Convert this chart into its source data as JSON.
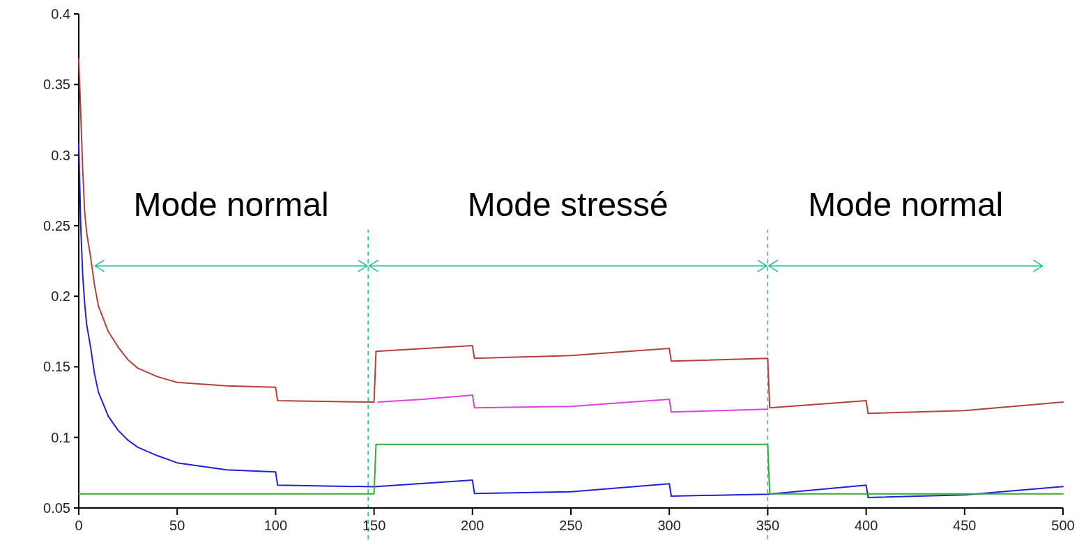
{
  "chart_data": {
    "type": "line",
    "xlim": [
      0,
      500
    ],
    "xticks": [
      0,
      50,
      100,
      150,
      200,
      250,
      300,
      350,
      400,
      450,
      500
    ],
    "ylim": [
      0.05,
      0.4
    ],
    "yticks": [
      0.05,
      0.1,
      0.15,
      0.2,
      0.25,
      0.3,
      0.35,
      0.4
    ],
    "grid": false,
    "marker": "none",
    "line_style": "solid",
    "series": [
      {
        "color": "#e040e0",
        "x": [
          152,
          175,
          200,
          201,
          250,
          300,
          301,
          350
        ],
        "values": [
          0.125,
          0.127,
          0.13,
          0.121,
          0.122,
          0.127,
          0.118,
          0.12
        ]
      },
      {
        "color": "#2020e0",
        "x": [
          0,
          1,
          2,
          3,
          4,
          6,
          8,
          10,
          15,
          20,
          25,
          30,
          40,
          50,
          75,
          100,
          101,
          150,
          200,
          201,
          250,
          300,
          301,
          350,
          400,
          401,
          450,
          500
        ],
        "values": [
          0.308,
          0.25,
          0.215,
          0.195,
          0.18,
          0.164,
          0.145,
          0.132,
          0.115,
          0.105,
          0.098,
          0.093,
          0.087,
          0.082,
          0.077,
          0.0756,
          0.0662,
          0.065,
          0.0697,
          0.0603,
          0.0615,
          0.0672,
          0.0584,
          0.0598,
          0.0662,
          0.0574,
          0.0592,
          0.0652
        ]
      },
      {
        "color": "#30b030",
        "x": [
          0,
          150,
          151,
          350,
          351,
          500
        ],
        "values": [
          0.06,
          0.06,
          0.095,
          0.095,
          0.06,
          0.06
        ]
      },
      {
        "color": "#b5403a",
        "x": [
          0,
          1,
          2,
          3,
          4,
          6,
          8,
          10,
          15,
          20,
          25,
          30,
          40,
          50,
          75,
          100,
          101,
          150,
          151,
          200,
          201,
          250,
          300,
          301,
          350,
          351,
          400,
          401,
          450,
          500
        ],
        "values": [
          0.368,
          0.33,
          0.29,
          0.26,
          0.245,
          0.228,
          0.208,
          0.193,
          0.175,
          0.164,
          0.155,
          0.149,
          0.143,
          0.139,
          0.1365,
          0.1355,
          0.126,
          0.125,
          0.161,
          0.165,
          0.156,
          0.158,
          0.163,
          0.154,
          0.156,
          0.121,
          0.126,
          0.117,
          0.119,
          0.125
        ]
      }
    ],
    "ref_lines": [
      {
        "axis": "x",
        "value": 147,
        "color": "#20c090",
        "line_style": "dashed"
      },
      {
        "axis": "x",
        "value": 350,
        "color": "#20c090",
        "line_style": "dashed"
      }
    ],
    "annotations": [
      "Mode normal",
      "Mode stressé",
      "Mode normal"
    ]
  }
}
